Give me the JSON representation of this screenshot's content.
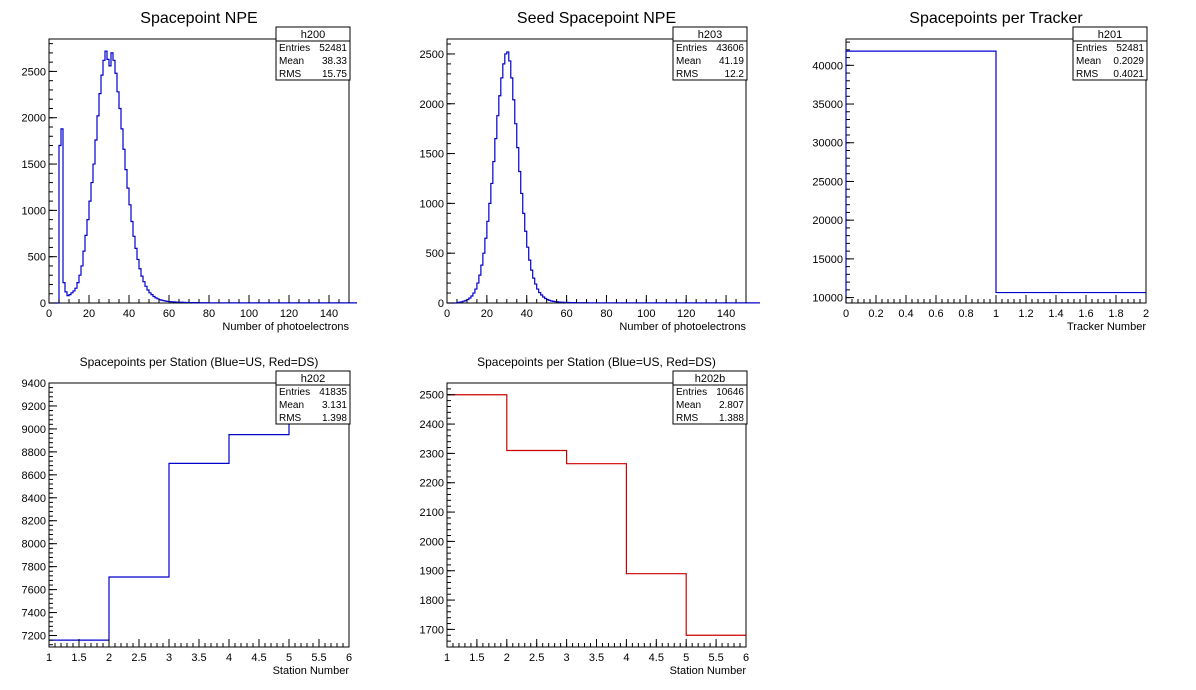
{
  "chart_data": [
    {
      "type": "histogram",
      "title": "Spacepoint NPE",
      "xlabel": "Number of photoelectrons",
      "ylabel": "",
      "xlim": [
        0,
        150
      ],
      "ylim": [
        0,
        2850
      ],
      "line_color": "#0000cc",
      "x_ticks": [
        "0",
        "20",
        "40",
        "60",
        "80",
        "100",
        "120",
        "140"
      ],
      "y_ticks": [
        "0",
        "500",
        "1000",
        "1500",
        "2000",
        "2500"
      ],
      "stats": {
        "name": "h200",
        "rows": [
          [
            "Entries",
            "52481"
          ],
          [
            "Mean",
            "38.33"
          ],
          [
            "RMS",
            "15.75"
          ]
        ]
      },
      "bins": {
        "start": 0,
        "width": 1,
        "values": [
          0,
          0,
          0,
          0,
          0,
          1700,
          1880,
          220,
          120,
          80,
          90,
          110,
          130,
          160,
          220,
          300,
          400,
          560,
          730,
          900,
          1100,
          1300,
          1500,
          1760,
          2020,
          2260,
          2460,
          2620,
          2720,
          2630,
          2560,
          2700,
          2620,
          2480,
          2280,
          2100,
          1880,
          1660,
          1440,
          1240,
          1060,
          880,
          720,
          590,
          470,
          370,
          290,
          230,
          180,
          140,
          110,
          90,
          70,
          55,
          45,
          36,
          30,
          25,
          20,
          17,
          15,
          13,
          12,
          10,
          9,
          8,
          8,
          7,
          6,
          6,
          5,
          5,
          4,
          4,
          4,
          3,
          3,
          3,
          3,
          2,
          2,
          2,
          2,
          2,
          2,
          2,
          2,
          2,
          1,
          1,
          1,
          1,
          1,
          1,
          1,
          1,
          1,
          1,
          1,
          1,
          1,
          1,
          1,
          1,
          1,
          1,
          1,
          1,
          1,
          1,
          1,
          1,
          1,
          1,
          1,
          1,
          1,
          1,
          1,
          1,
          1,
          1,
          1,
          1,
          1,
          1,
          1,
          1,
          1,
          1,
          1,
          1,
          1,
          1,
          1,
          1,
          1,
          1,
          1,
          1,
          1,
          1,
          1,
          1,
          1,
          1,
          1,
          1,
          1,
          1,
          1,
          1,
          1,
          1
        ]
      }
    },
    {
      "type": "histogram",
      "title": "Seed Spacepoint NPE",
      "xlabel": "Number of photoelectrons",
      "ylabel": "",
      "xlim": [
        0,
        150
      ],
      "ylim": [
        0,
        2650
      ],
      "line_color": "#0000cc",
      "x_ticks": [
        "0",
        "20",
        "40",
        "60",
        "80",
        "100",
        "120",
        "140"
      ],
      "y_ticks": [
        "0",
        "500",
        "1000",
        "1500",
        "2000",
        "2500"
      ],
      "stats": {
        "name": "h203",
        "rows": [
          [
            "Entries",
            "43606"
          ],
          [
            "Mean",
            "41.19"
          ],
          [
            "RMS",
            "12.2"
          ]
        ]
      },
      "bins": {
        "start": 0,
        "width": 1,
        "values": [
          0,
          0,
          0,
          0,
          0,
          5,
          8,
          12,
          18,
          25,
          35,
          50,
          70,
          100,
          140,
          200,
          280,
          380,
          500,
          650,
          820,
          1000,
          1200,
          1420,
          1650,
          1880,
          2080,
          2260,
          2400,
          2500,
          2520,
          2430,
          2260,
          2040,
          1800,
          1560,
          1320,
          1100,
          900,
          720,
          560,
          430,
          330,
          250,
          190,
          140,
          105,
          80,
          60,
          45,
          34,
          26,
          20,
          16,
          13,
          11,
          9,
          8,
          7,
          6,
          5,
          5,
          4,
          4,
          4,
          3,
          3,
          3,
          3,
          3,
          3,
          2,
          2,
          2,
          2,
          2,
          2,
          2,
          2,
          2,
          2,
          2,
          2,
          2,
          2,
          2,
          2,
          2,
          2,
          2,
          2,
          2,
          2,
          2,
          2,
          2,
          2,
          2,
          2,
          2,
          2,
          1,
          1,
          1,
          1,
          1,
          1,
          1,
          1,
          1,
          1,
          1,
          1,
          1,
          1,
          1,
          1,
          1,
          1,
          1,
          1,
          1,
          1,
          1,
          1,
          1,
          1,
          1,
          1,
          1,
          1,
          1,
          1,
          1,
          1,
          1,
          1,
          1,
          1,
          1,
          1,
          1,
          1,
          1,
          1,
          1,
          1,
          1,
          1,
          1,
          1,
          1,
          1,
          1,
          1,
          1,
          1
        ]
      }
    },
    {
      "type": "histogram",
      "title": "Spacepoints per Tracker",
      "xlabel": "Tracker Number",
      "ylabel": "",
      "xlim": [
        0,
        2
      ],
      "ylim": [
        9300,
        43400
      ],
      "line_color": "#0000cc",
      "x_ticks": [
        "0",
        "0.2",
        "0.4",
        "0.6",
        "0.8",
        "1",
        "1.2",
        "1.4",
        "1.6",
        "1.8",
        "2"
      ],
      "y_ticks": [
        "10000",
        "15000",
        "20000",
        "25000",
        "30000",
        "35000",
        "40000"
      ],
      "stats": {
        "name": "h201",
        "rows": [
          [
            "Entries",
            "52481"
          ],
          [
            "Mean",
            "0.2029"
          ],
          [
            "RMS",
            "0.4021"
          ]
        ]
      },
      "bins": {
        "start": 0,
        "width": 1,
        "values": [
          41835,
          10646
        ]
      }
    },
    {
      "type": "histogram",
      "title": "Spacepoints per Station (Blue=US, Red=DS)",
      "xlabel": "Station Number",
      "ylabel": "",
      "xlim": [
        1,
        6
      ],
      "ylim": [
        7100,
        9400
      ],
      "line_color": "#0000cc",
      "x_ticks": [
        "1",
        "1.5",
        "2",
        "2.5",
        "3",
        "3.5",
        "4",
        "4.5",
        "5",
        "5.5",
        "6"
      ],
      "y_ticks": [
        "7200",
        "7400",
        "7600",
        "7800",
        "8000",
        "8200",
        "8400",
        "8600",
        "8800",
        "9000",
        "9200",
        "9400"
      ],
      "stats": {
        "name": "h202",
        "rows": [
          [
            "Entries",
            "41835"
          ],
          [
            "Mean",
            "3.131"
          ],
          [
            "RMS",
            "1.398"
          ]
        ]
      },
      "bins": {
        "start": 1,
        "width": 1,
        "values": [
          7160,
          7710,
          8700,
          8950,
          9300
        ]
      }
    },
    {
      "type": "histogram",
      "title": "Spacepoints per Station (Blue=US, Red=DS)",
      "xlabel": "Station Number",
      "ylabel": "",
      "xlim": [
        1,
        6
      ],
      "ylim": [
        1640,
        2540
      ],
      "line_color": "#cc0000",
      "x_ticks": [
        "1",
        "1.5",
        "2",
        "2.5",
        "3",
        "3.5",
        "4",
        "4.5",
        "5",
        "5.5",
        "6"
      ],
      "y_ticks": [
        "1700",
        "1800",
        "1900",
        "2000",
        "2100",
        "2200",
        "2300",
        "2400",
        "2500"
      ],
      "stats": {
        "name": "h202b",
        "rows": [
          [
            "Entries",
            "10646"
          ],
          [
            "Mean",
            "2.807"
          ],
          [
            "RMS",
            "1.388"
          ]
        ]
      },
      "bins": {
        "start": 1,
        "width": 1,
        "values": [
          2500,
          2310,
          2265,
          1890,
          1680
        ]
      }
    }
  ]
}
